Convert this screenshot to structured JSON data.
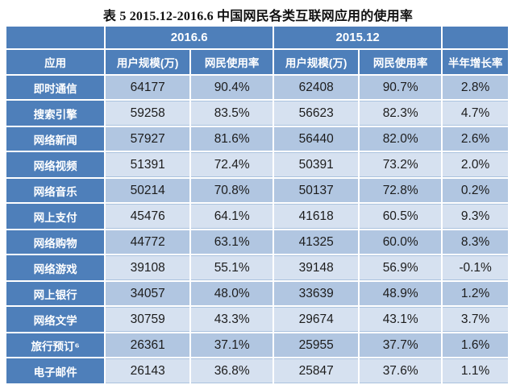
{
  "title": "表 5 2015.12-2016.6 中国网民各类互联网应用的使用率",
  "colors": {
    "header_blue": "#4e7fba",
    "band_dark": "#b1c6e1",
    "band_light": "#d6e1f0",
    "header_text": "#ffffff",
    "body_text": "#1c1c1c",
    "page_background": "#ffffff"
  },
  "table": {
    "group_headers": {
      "period_1": "2016.6",
      "period_2": "2015.12"
    },
    "columns": {
      "app": "应用",
      "scale_1": "用户规模(万)",
      "rate_1": "网民使用率",
      "scale_2": "用户规模(万)",
      "rate_2": "网民使用率",
      "half_year_growth": "半年增长率"
    },
    "rows": [
      {
        "app": "即时通信",
        "values": [
          "64177",
          "90.4%",
          "62408",
          "90.7%",
          "2.8%"
        ]
      },
      {
        "app": "搜索引擎",
        "values": [
          "59258",
          "83.5%",
          "56623",
          "82.3%",
          "4.7%"
        ]
      },
      {
        "app": "网络新闻",
        "values": [
          "57927",
          "81.6%",
          "56440",
          "82.0%",
          "2.6%"
        ]
      },
      {
        "app": "网络视频",
        "values": [
          "51391",
          "72.4%",
          "50391",
          "73.2%",
          "2.0%"
        ]
      },
      {
        "app": "网络音乐",
        "values": [
          "50214",
          "70.8%",
          "50137",
          "72.8%",
          "0.2%"
        ]
      },
      {
        "app": "网上支付",
        "values": [
          "45476",
          "64.1%",
          "41618",
          "60.5%",
          "9.3%"
        ]
      },
      {
        "app": "网络购物",
        "values": [
          "44772",
          "63.1%",
          "41325",
          "60.0%",
          "8.3%"
        ]
      },
      {
        "app": "网络游戏",
        "values": [
          "39108",
          "55.1%",
          "39148",
          "56.9%",
          "-0.1%"
        ]
      },
      {
        "app": "网上银行",
        "values": [
          "34057",
          "48.0%",
          "33639",
          "48.9%",
          "1.2%"
        ]
      },
      {
        "app": "网络文学",
        "values": [
          "30759",
          "43.3%",
          "29674",
          "43.1%",
          "3.7%"
        ]
      },
      {
        "app": "旅行预订⁶",
        "values": [
          "26361",
          "37.1%",
          "25955",
          "37.7%",
          "1.6%"
        ]
      },
      {
        "app": "电子邮件",
        "values": [
          "26143",
          "36.8%",
          "25847",
          "37.6%",
          "1.1%"
        ]
      }
    ]
  },
  "chart_data": {
    "type": "table",
    "title": "表 5 2015.12-2016.6 中国网民各类互联网应用的使用率",
    "column_groups": [
      "",
      "2016.6",
      "2016.6",
      "2015.12",
      "2015.12",
      ""
    ],
    "columns": [
      "应用",
      "用户规模(万)",
      "网民使用率",
      "用户规模(万)",
      "网民使用率",
      "半年增长率"
    ],
    "rows": [
      [
        "即时通信",
        64177,
        "90.4%",
        62408,
        "90.7%",
        "2.8%"
      ],
      [
        "搜索引擎",
        59258,
        "83.5%",
        56623,
        "82.3%",
        "4.7%"
      ],
      [
        "网络新闻",
        57927,
        "81.6%",
        56440,
        "82.0%",
        "2.6%"
      ],
      [
        "网络视频",
        51391,
        "72.4%",
        50391,
        "73.2%",
        "2.0%"
      ],
      [
        "网络音乐",
        50214,
        "70.8%",
        50137,
        "72.8%",
        "0.2%"
      ],
      [
        "网上支付",
        45476,
        "64.1%",
        41618,
        "60.5%",
        "9.3%"
      ],
      [
        "网络购物",
        44772,
        "63.1%",
        41325,
        "60.0%",
        "8.3%"
      ],
      [
        "网络游戏",
        39108,
        "55.1%",
        39148,
        "56.9%",
        "-0.1%"
      ],
      [
        "网上银行",
        34057,
        "48.0%",
        33639,
        "48.9%",
        "1.2%"
      ],
      [
        "网络文学",
        30759,
        "43.3%",
        29674,
        "43.1%",
        "3.7%"
      ],
      [
        "旅行预订⁶",
        26361,
        "37.1%",
        25955,
        "37.7%",
        "1.6%"
      ],
      [
        "电子邮件",
        26143,
        "36.8%",
        25847,
        "37.6%",
        "1.1%"
      ]
    ]
  }
}
